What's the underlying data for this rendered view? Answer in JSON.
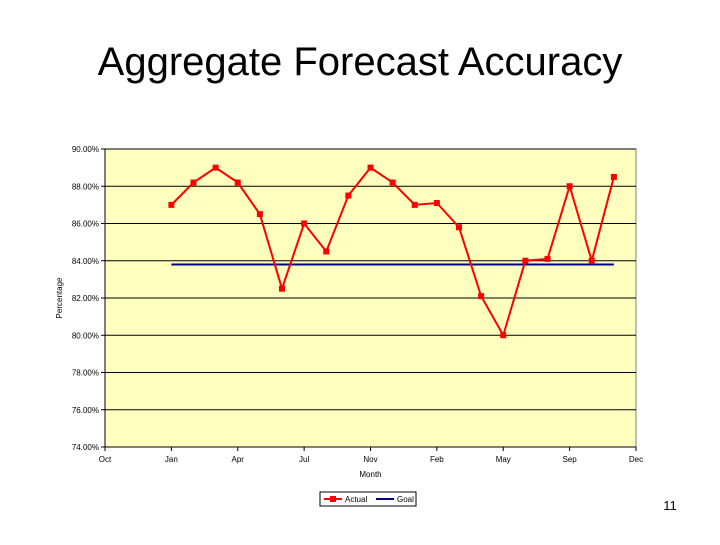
{
  "slide": {
    "title": "Aggregate Forecast Accuracy",
    "page_number": "11"
  },
  "colors": {
    "plot_bg": "#ffffc0",
    "actual": "#ff0000",
    "goal": "#00008b",
    "grid": "#000000"
  },
  "chart_data": {
    "type": "line",
    "title": "",
    "xlabel": "Month",
    "ylabel": "Percentage",
    "y_ticks": [
      "74.00%",
      "76.00%",
      "78.00%",
      "80.00%",
      "82.00%",
      "84.00%",
      "86.00%",
      "88.00%",
      "90.00%"
    ],
    "ylim": [
      74,
      90
    ],
    "x_ticks": [
      "Oct",
      "Jan",
      "Apr",
      "Jul",
      "Nov",
      "Feb",
      "May",
      "Sep",
      "Dec"
    ],
    "xlim": [
      0,
      24
    ],
    "grid": true,
    "legend_position": "bottom",
    "series": [
      {
        "name": "Actual",
        "x": [
          3,
          4,
          5,
          6,
          7,
          8,
          9,
          10,
          11,
          12,
          13,
          14,
          15,
          16,
          17,
          18,
          19,
          20,
          21,
          22,
          23
        ],
        "y": [
          87.0,
          88.2,
          89.0,
          88.2,
          86.5,
          82.5,
          86.0,
          84.5,
          87.5,
          89.0,
          88.2,
          87.0,
          87.1,
          85.8,
          82.1,
          80.0,
          84.0,
          84.1,
          88.0,
          84.0,
          88.5
        ]
      },
      {
        "name": "Goal",
        "x": [
          3,
          23
        ],
        "y": [
          83.8,
          83.8
        ]
      }
    ]
  }
}
